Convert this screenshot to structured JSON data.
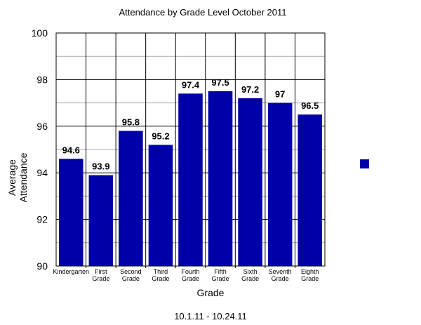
{
  "chart_data": {
    "type": "bar",
    "title": "Attendance by Grade Level October 2011",
    "xlabel": "Grade",
    "ylabel": "Average Attendance",
    "ylabel_lines": [
      "Average",
      "Attendance"
    ],
    "footer": "10.1.11 - 10.24.11",
    "categories": [
      "Kindergarten",
      "First Grade",
      "Second Grade",
      "Third Grade",
      "Fourth Grade",
      "Fifth Grade",
      "Sixth Grade",
      "Seventh Grade",
      "Eighth Grade"
    ],
    "category_lines": [
      [
        "Kindergarten"
      ],
      [
        "First",
        "Grade"
      ],
      [
        "Second",
        "Grade"
      ],
      [
        "Third",
        "Grade"
      ],
      [
        "Fourth",
        "Grade"
      ],
      [
        "Fifth",
        "Grade"
      ],
      [
        "Sixth",
        "Grade"
      ],
      [
        "Seventh",
        "Grade"
      ],
      [
        "Eighth",
        "Grade"
      ]
    ],
    "values": [
      94.6,
      93.9,
      95.8,
      95.2,
      97.4,
      97.5,
      97.2,
      97,
      96.5
    ],
    "data_labels": [
      "94.6",
      "93.9",
      "95.8",
      "95.2",
      "97.4",
      "97.5",
      "97.2",
      "97",
      "96.5"
    ],
    "ylim": [
      90,
      100
    ],
    "yticks": [
      90,
      92,
      94,
      96,
      98,
      100
    ],
    "ytick_labels": [
      "90",
      "92",
      "94",
      "96",
      "98",
      "100"
    ],
    "minor_gridlines": true,
    "bar_color": "#0000A8",
    "legend": {
      "placement": "right",
      "entries": [
        ""
      ]
    }
  }
}
